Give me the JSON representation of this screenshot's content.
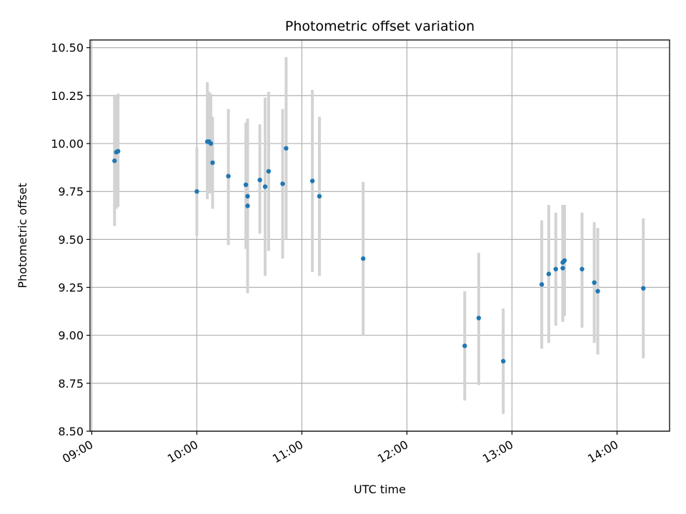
{
  "chart_data": {
    "type": "scatter",
    "title": "Photometric offset variation",
    "xlabel": "UTC time",
    "ylabel": "Photometric offset",
    "x_ticks": [
      "09:00",
      "10:00",
      "11:00",
      "12:00",
      "13:00",
      "14:00"
    ],
    "y_ticks": [
      "8.50",
      "8.75",
      "9.00",
      "9.25",
      "9.50",
      "9.75",
      "10.00",
      "10.25",
      "10.50"
    ],
    "xlim": [
      "08:59",
      "14:30"
    ],
    "ylim": [
      8.5,
      10.54
    ],
    "grid": true,
    "colors": {
      "points": "#1f77b4",
      "errorbars": "#d3d3d3",
      "grid": "#b0b0b0"
    },
    "points": [
      {
        "t": "09:13",
        "y": 9.91,
        "lo": 9.57,
        "hi": 10.25
      },
      {
        "t": "09:14",
        "y": 9.955,
        "lo": 9.66,
        "hi": 10.25
      },
      {
        "t": "09:15",
        "y": 9.96,
        "lo": 9.67,
        "hi": 10.26
      },
      {
        "t": "10:00",
        "y": 9.75,
        "lo": 9.52,
        "hi": 9.98
      },
      {
        "t": "10:06",
        "y": 10.01,
        "lo": 9.71,
        "hi": 10.32
      },
      {
        "t": "10:07",
        "y": 10.01,
        "lo": 9.74,
        "hi": 10.27
      },
      {
        "t": "10:08",
        "y": 10.0,
        "lo": 9.74,
        "hi": 10.26
      },
      {
        "t": "10:09",
        "y": 9.9,
        "lo": 9.66,
        "hi": 10.14
      },
      {
        "t": "10:18",
        "y": 9.83,
        "lo": 9.47,
        "hi": 10.18
      },
      {
        "t": "10:28",
        "y": 9.785,
        "lo": 9.45,
        "hi": 10.11
      },
      {
        "t": "10:29",
        "y": 9.725,
        "lo": 9.4,
        "hi": 10.06
      },
      {
        "t": "10:29",
        "y": 9.675,
        "lo": 9.22,
        "hi": 10.13
      },
      {
        "t": "10:36",
        "y": 9.81,
        "lo": 9.53,
        "hi": 10.1
      },
      {
        "t": "10:39",
        "y": 9.775,
        "lo": 9.31,
        "hi": 10.24
      },
      {
        "t": "10:41",
        "y": 9.855,
        "lo": 9.44,
        "hi": 10.27
      },
      {
        "t": "10:49",
        "y": 9.79,
        "lo": 9.4,
        "hi": 10.18
      },
      {
        "t": "10:51",
        "y": 9.975,
        "lo": 9.5,
        "hi": 10.45
      },
      {
        "t": "11:06",
        "y": 9.805,
        "lo": 9.33,
        "hi": 10.28
      },
      {
        "t": "11:10",
        "y": 9.725,
        "lo": 9.31,
        "hi": 10.14
      },
      {
        "t": "11:35",
        "y": 9.4,
        "lo": 9.0,
        "hi": 9.8
      },
      {
        "t": "12:33",
        "y": 8.945,
        "lo": 8.66,
        "hi": 9.23
      },
      {
        "t": "12:41",
        "y": 9.09,
        "lo": 8.74,
        "hi": 9.43
      },
      {
        "t": "12:55",
        "y": 8.865,
        "lo": 8.59,
        "hi": 9.14
      },
      {
        "t": "13:17",
        "y": 9.265,
        "lo": 8.93,
        "hi": 9.6
      },
      {
        "t": "13:21",
        "y": 9.32,
        "lo": 8.96,
        "hi": 9.68
      },
      {
        "t": "13:25",
        "y": 9.345,
        "lo": 9.05,
        "hi": 9.64
      },
      {
        "t": "13:29",
        "y": 9.35,
        "lo": 9.07,
        "hi": 9.68
      },
      {
        "t": "13:29",
        "y": 9.38,
        "lo": 9.08,
        "hi": 9.68
      },
      {
        "t": "13:30",
        "y": 9.39,
        "lo": 9.1,
        "hi": 9.68
      },
      {
        "t": "13:40",
        "y": 9.345,
        "lo": 9.04,
        "hi": 9.64
      },
      {
        "t": "13:47",
        "y": 9.275,
        "lo": 8.96,
        "hi": 9.59
      },
      {
        "t": "13:49",
        "y": 9.23,
        "lo": 8.9,
        "hi": 9.56
      },
      {
        "t": "14:15",
        "y": 9.245,
        "lo": 8.88,
        "hi": 9.61
      }
    ]
  }
}
